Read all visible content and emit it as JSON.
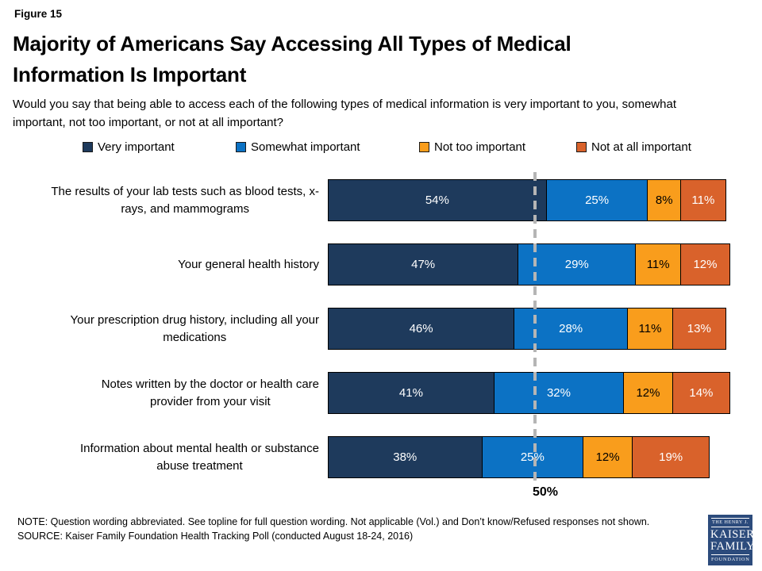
{
  "header": {
    "figure_label": "Figure 15",
    "title_lines": [
      "Majority of Americans Say Accessing All Types of Medical",
      "Information Is Important"
    ],
    "subtitle": "Would you say that being able to access each of the following types of medical information is very important to you, somewhat important, not too important, or not at all important?"
  },
  "legend": [
    {
      "label": "Very important",
      "color": "#1E3A5C"
    },
    {
      "label": "Somewhat important",
      "color": "#0C72C4"
    },
    {
      "label": "Not too important",
      "color": "#F99D1C"
    },
    {
      "label": "Not at all important",
      "color": "#D9622B"
    }
  ],
  "chart_data": {
    "type": "bar",
    "orientation": "horizontal",
    "stacked": true,
    "title": "Majority of Americans Say Accessing All Types of Medical Information Is Important",
    "unit": "%",
    "xlim": [
      0,
      100
    ],
    "grid": false,
    "categories": [
      {
        "lines": [
          "The results of your lab tests such as blood tests, x-",
          "rays, and mammograms"
        ]
      },
      {
        "lines": [
          "Your general health history"
        ]
      },
      {
        "lines": [
          "Your prescription drug history, including all your",
          "medications"
        ]
      },
      {
        "lines": [
          "Notes written by the doctor or health care",
          "provider from your visit"
        ]
      },
      {
        "lines": [
          "Information about mental health or substance",
          "abuse treatment"
        ]
      }
    ],
    "series": [
      {
        "name": "Very important",
        "color": "#1E3A5C",
        "label_color": "#FFFFFF",
        "values": [
          54,
          47,
          46,
          41,
          38
        ]
      },
      {
        "name": "Somewhat important",
        "color": "#0C72C4",
        "label_color": "#FFFFFF",
        "values": [
          25,
          29,
          28,
          32,
          25
        ]
      },
      {
        "name": "Not too important",
        "color": "#F99D1C",
        "label_color": "#000000",
        "values": [
          8,
          11,
          11,
          12,
          12
        ]
      },
      {
        "name": "Not at all important",
        "color": "#D9622B",
        "label_color": "#FFFFFF",
        "values": [
          11,
          12,
          13,
          14,
          19
        ]
      }
    ],
    "reference_line": {
      "value": 50,
      "label": "50%",
      "style": "dashed",
      "color": "#B5B5B5"
    }
  },
  "footer": {
    "note": "NOTE: Question wording abbreviated. See topline for full question wording. Not applicable (Vol.) and Don’t know/Refused responses not shown.",
    "source": "SOURCE: Kaiser Family Foundation Health Tracking Poll (conducted August 18-24, 2016)"
  },
  "logo": {
    "line1": "THE HENRY J.",
    "line2": "KAISER",
    "line3": "FAMILY",
    "line4": "FOUNDATION",
    "bg_color": "#2C4B7C"
  }
}
